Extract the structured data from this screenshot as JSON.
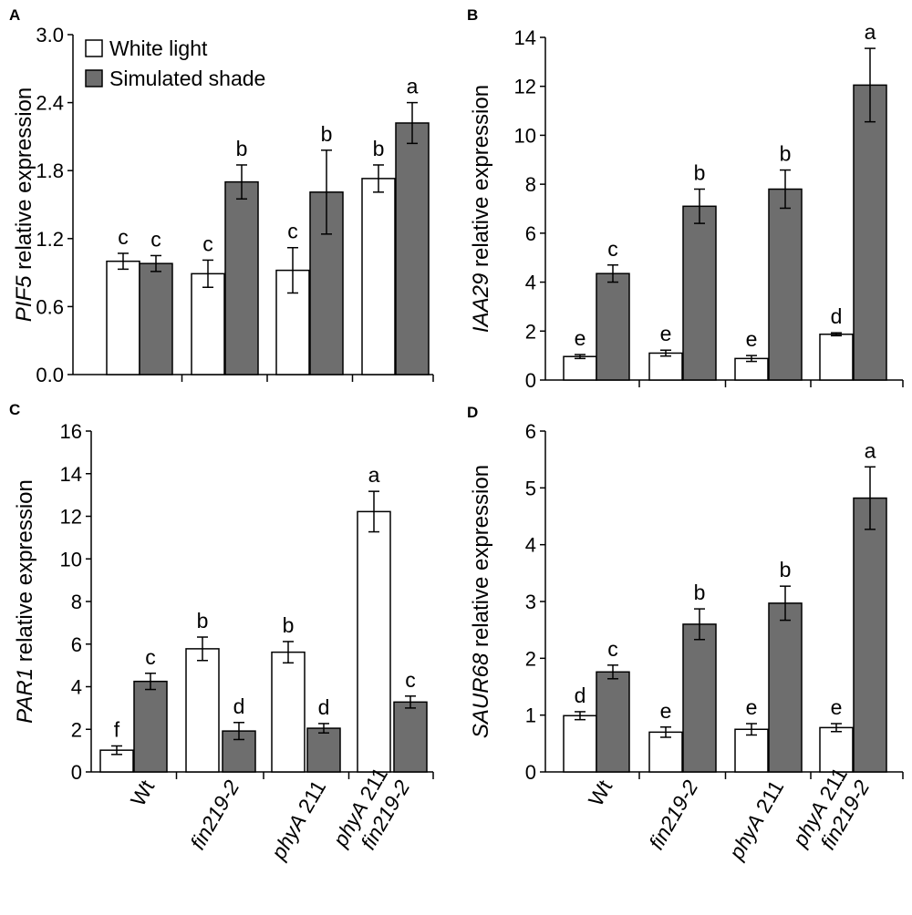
{
  "colors": {
    "white_bar": "#ffffff",
    "shade_bar": "#6e6e6e",
    "stroke": "#000000"
  },
  "legend": {
    "white_label": "White light",
    "shade_label": "Simulated shade"
  },
  "categories": [
    {
      "lines": [
        {
          "parts": [
            {
              "t": "Wt",
              "i": false
            }
          ]
        }
      ]
    },
    {
      "lines": [
        {
          "parts": [
            {
              "t": "fin219-2",
              "i": true
            }
          ]
        }
      ]
    },
    {
      "lines": [
        {
          "parts": [
            {
              "t": "phyA",
              "i": true
            },
            {
              "t": " 211",
              "i": false
            }
          ]
        }
      ]
    },
    {
      "lines": [
        {
          "parts": [
            {
              "t": "phyA",
              "i": true
            },
            {
              "t": " 211",
              "i": false
            }
          ]
        },
        {
          "parts": [
            {
              "t": "fin219-2",
              "i": true
            }
          ]
        }
      ]
    }
  ],
  "chart_data": [
    {
      "type": "bar",
      "panel": "A",
      "ylabel_gene": "PIF5",
      "ylabel_rest": " relative expression",
      "ylim": [
        0,
        3.0
      ],
      "yticks": [
        "0.0",
        "0.6",
        "1.2",
        "1.8",
        "2.4",
        "3.0"
      ],
      "legend_shown": true,
      "categories": [
        "Wt",
        "fin219-2",
        "phyA 211",
        "phyA 211 fin219-2"
      ],
      "series": [
        {
          "name": "White light",
          "values": [
            1.0,
            0.89,
            0.92,
            1.73
          ],
          "errors": [
            0.07,
            0.12,
            0.2,
            0.12
          ],
          "letters": [
            "c",
            "c",
            "c",
            "b"
          ]
        },
        {
          "name": "Simulated shade",
          "values": [
            0.98,
            1.7,
            1.61,
            2.22
          ],
          "errors": [
            0.07,
            0.15,
            0.37,
            0.18
          ],
          "letters": [
            "c",
            "b",
            "b",
            "a"
          ]
        }
      ]
    },
    {
      "type": "bar",
      "panel": "B",
      "ylabel_gene": "IAA29",
      "ylabel_rest": " relative expression",
      "ylim": [
        0,
        14
      ],
      "yticks": [
        "0",
        "2",
        "4",
        "6",
        "8",
        "10",
        "12",
        "14"
      ],
      "legend_shown": false,
      "categories": [
        "Wt",
        "fin219-2",
        "phyA 211",
        "phyA 211 fin219-2"
      ],
      "series": [
        {
          "name": "White light",
          "values": [
            0.96,
            1.1,
            0.88,
            1.87
          ],
          "errors": [
            0.08,
            0.12,
            0.12,
            0.06
          ],
          "letters": [
            "e",
            "e",
            "e",
            "d"
          ]
        },
        {
          "name": "Simulated shade",
          "values": [
            4.35,
            7.1,
            7.8,
            12.05
          ],
          "errors": [
            0.35,
            0.7,
            0.78,
            1.5
          ],
          "letters": [
            "c",
            "b",
            "b",
            "a"
          ]
        }
      ]
    },
    {
      "type": "bar",
      "panel": "C",
      "ylabel_gene": "PAR1",
      "ylabel_rest": " relative expression",
      "ylim": [
        0,
        16
      ],
      "yticks": [
        "0",
        "2",
        "4",
        "6",
        "8",
        "10",
        "12",
        "14",
        "16"
      ],
      "legend_shown": false,
      "categories": [
        "Wt",
        "fin219-2",
        "phyA 211",
        "phyA 211 fin219-2"
      ],
      "series": [
        {
          "name": "White light",
          "values": [
            1.02,
            5.78,
            5.62,
            12.22
          ],
          "errors": [
            0.2,
            0.55,
            0.5,
            0.95
          ],
          "letters": [
            "f",
            "b",
            "b",
            "a"
          ]
        },
        {
          "name": "Simulated shade",
          "values": [
            4.25,
            1.92,
            2.05,
            3.28
          ],
          "errors": [
            0.38,
            0.4,
            0.22,
            0.28
          ],
          "letters": [
            "c",
            "d",
            "d",
            "c"
          ]
        }
      ]
    },
    {
      "type": "bar",
      "panel": "D",
      "ylabel_gene": "SAUR68",
      "ylabel_rest": " relative expression",
      "ylim": [
        0,
        6
      ],
      "yticks": [
        "0",
        "1",
        "2",
        "3",
        "4",
        "5",
        "6"
      ],
      "legend_shown": false,
      "categories": [
        "Wt",
        "fin219-2",
        "phyA 211",
        "phyA 211 fin219-2"
      ],
      "series": [
        {
          "name": "White light",
          "values": [
            0.99,
            0.7,
            0.75,
            0.78
          ],
          "errors": [
            0.07,
            0.09,
            0.1,
            0.07
          ],
          "letters": [
            "d",
            "e",
            "e",
            "e"
          ]
        },
        {
          "name": "Simulated shade",
          "values": [
            1.76,
            2.6,
            2.97,
            4.82
          ],
          "errors": [
            0.12,
            0.27,
            0.3,
            0.55
          ],
          "letters": [
            "c",
            "b",
            "b",
            "a"
          ]
        }
      ]
    }
  ]
}
